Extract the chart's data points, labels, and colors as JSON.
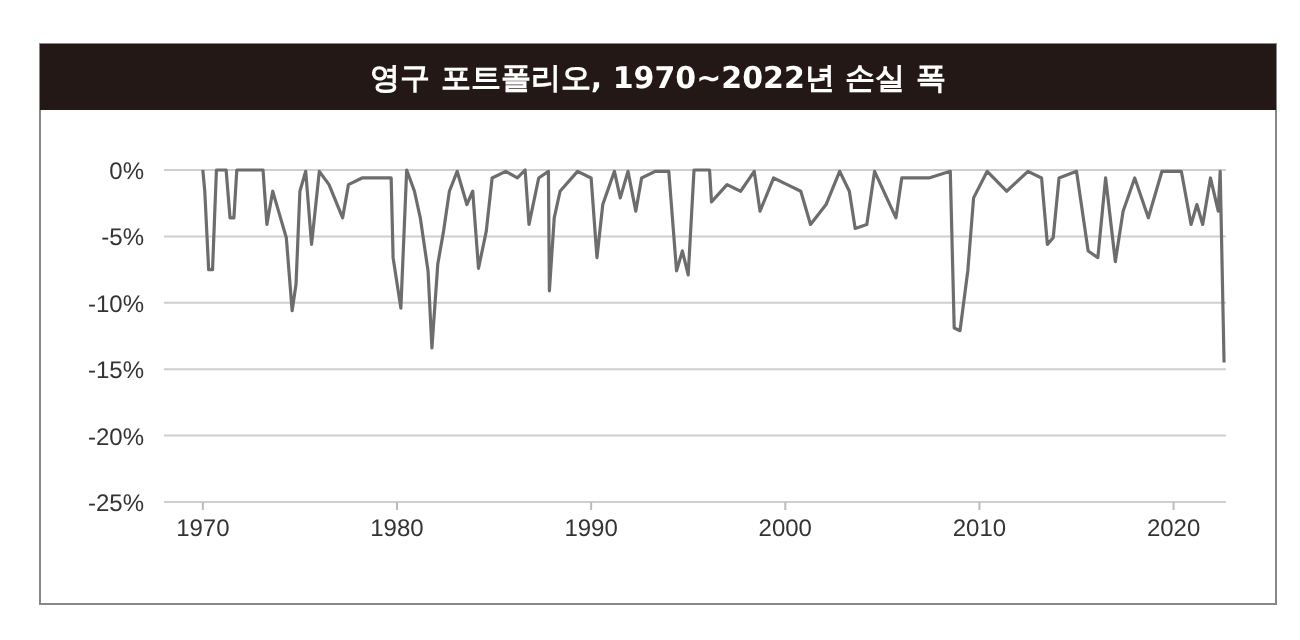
{
  "chart_data": {
    "type": "line",
    "title": "영구 포트폴리오, 1970~2022년 손실 폭",
    "x": [
      1970.0,
      1970.1,
      1970.3,
      1970.5,
      1970.7,
      1971.2,
      1971.4,
      1971.6,
      1971.75,
      1973.1,
      1973.3,
      1973.6,
      1973.9,
      1974.3,
      1974.6,
      1974.8,
      1975.0,
      1975.3,
      1975.6,
      1976.0,
      1976.5,
      1977.2,
      1977.5,
      1978.2,
      1979.7,
      1979.8,
      1980.2,
      1980.5,
      1980.9,
      1981.2,
      1981.6,
      1981.8,
      1982.1,
      1982.4,
      1982.7,
      1983.1,
      1983.6,
      1983.9,
      1984.2,
      1984.6,
      1984.9,
      1985.6,
      1986.2,
      1986.6,
      1986.8,
      1987.3,
      1987.8,
      1987.85,
      1988.1,
      1988.4,
      1989.3,
      1990.0,
      1990.3,
      1990.6,
      1991.2,
      1991.5,
      1991.9,
      1992.3,
      1992.6,
      1993.3,
      1994.0,
      1994.4,
      1994.7,
      1995.0,
      1995.3,
      1996.1,
      1996.2,
      1997.0,
      1997.7,
      1998.4,
      1998.7,
      1999.4,
      2000.1,
      2000.8,
      2001.3,
      2002.1,
      2002.8,
      2003.3,
      2003.6,
      2004.2,
      2004.6,
      2005.7,
      2006.0,
      2007.4,
      2008.5,
      2008.7,
      2009.0,
      2009.4,
      2009.7,
      2010.4,
      2011.4,
      2012.5,
      2013.2,
      2013.5,
      2013.8,
      2014.1,
      2015.0,
      2015.6,
      2016.1,
      2016.5,
      2017.0,
      2017.4,
      2018.0,
      2018.7,
      2019.4,
      2020.4,
      2020.9,
      2021.2,
      2021.5,
      2021.9,
      2022.3,
      2022.4,
      2022.6
    ],
    "values": [
      0,
      -1.6,
      -7.5,
      -7.5,
      0,
      0,
      -3.6,
      -3.6,
      0,
      0,
      -4.1,
      -1.6,
      -3.1,
      -5.1,
      -10.6,
      -8.6,
      -1.6,
      -0.1,
      -5.6,
      -0.1,
      -1.1,
      -3.6,
      -1.1,
      -0.6,
      -0.6,
      -6.6,
      -10.4,
      0,
      -1.6,
      -3.6,
      -7.6,
      -13.4,
      -7.1,
      -4.6,
      -1.6,
      -0.1,
      -2.6,
      -1.6,
      -7.4,
      -4.6,
      -0.6,
      -0.1,
      -0.6,
      0,
      -4.1,
      -0.6,
      -0.1,
      -9.1,
      -3.6,
      -1.6,
      -0.1,
      -0.6,
      -6.6,
      -2.6,
      -0.1,
      -2.1,
      -0.1,
      -3.1,
      -0.6,
      -0.1,
      -0.1,
      -7.6,
      -6.1,
      -7.9,
      0,
      0,
      -2.4,
      -1.1,
      -1.6,
      -0.1,
      -3.1,
      -0.6,
      -1.1,
      -1.6,
      -4.1,
      -2.6,
      -0.1,
      -1.6,
      -4.4,
      -4.1,
      -0.1,
      -3.6,
      -0.6,
      -0.6,
      -0.1,
      -11.9,
      -12.1,
      -7.6,
      -2.1,
      -0.1,
      -1.6,
      -0.1,
      -0.6,
      -5.6,
      -5.1,
      -0.6,
      -0.1,
      -6.1,
      -6.6,
      -0.6,
      -6.9,
      -3.1,
      -0.6,
      -3.6,
      -0.1,
      -0.1,
      -4.1,
      -2.6,
      -4.1,
      -0.6,
      -3.1,
      -0.1,
      -14.5
    ],
    "color": "#6d6d6d",
    "xlim": [
      1968,
      2022.7
    ],
    "xticks": [
      1970,
      1980,
      1990,
      2000,
      2010,
      2020
    ],
    "ylim": [
      -25,
      0
    ],
    "yticks": [
      {
        "value": 0,
        "label": "0%"
      },
      {
        "value": -5,
        "label": "-5%"
      },
      {
        "value": -10,
        "label": "-10%"
      },
      {
        "value": -15,
        "label": "-15%"
      },
      {
        "value": -20,
        "label": "-20%"
      },
      {
        "value": -25,
        "label": "-25%"
      }
    ],
    "grid": "y"
  }
}
